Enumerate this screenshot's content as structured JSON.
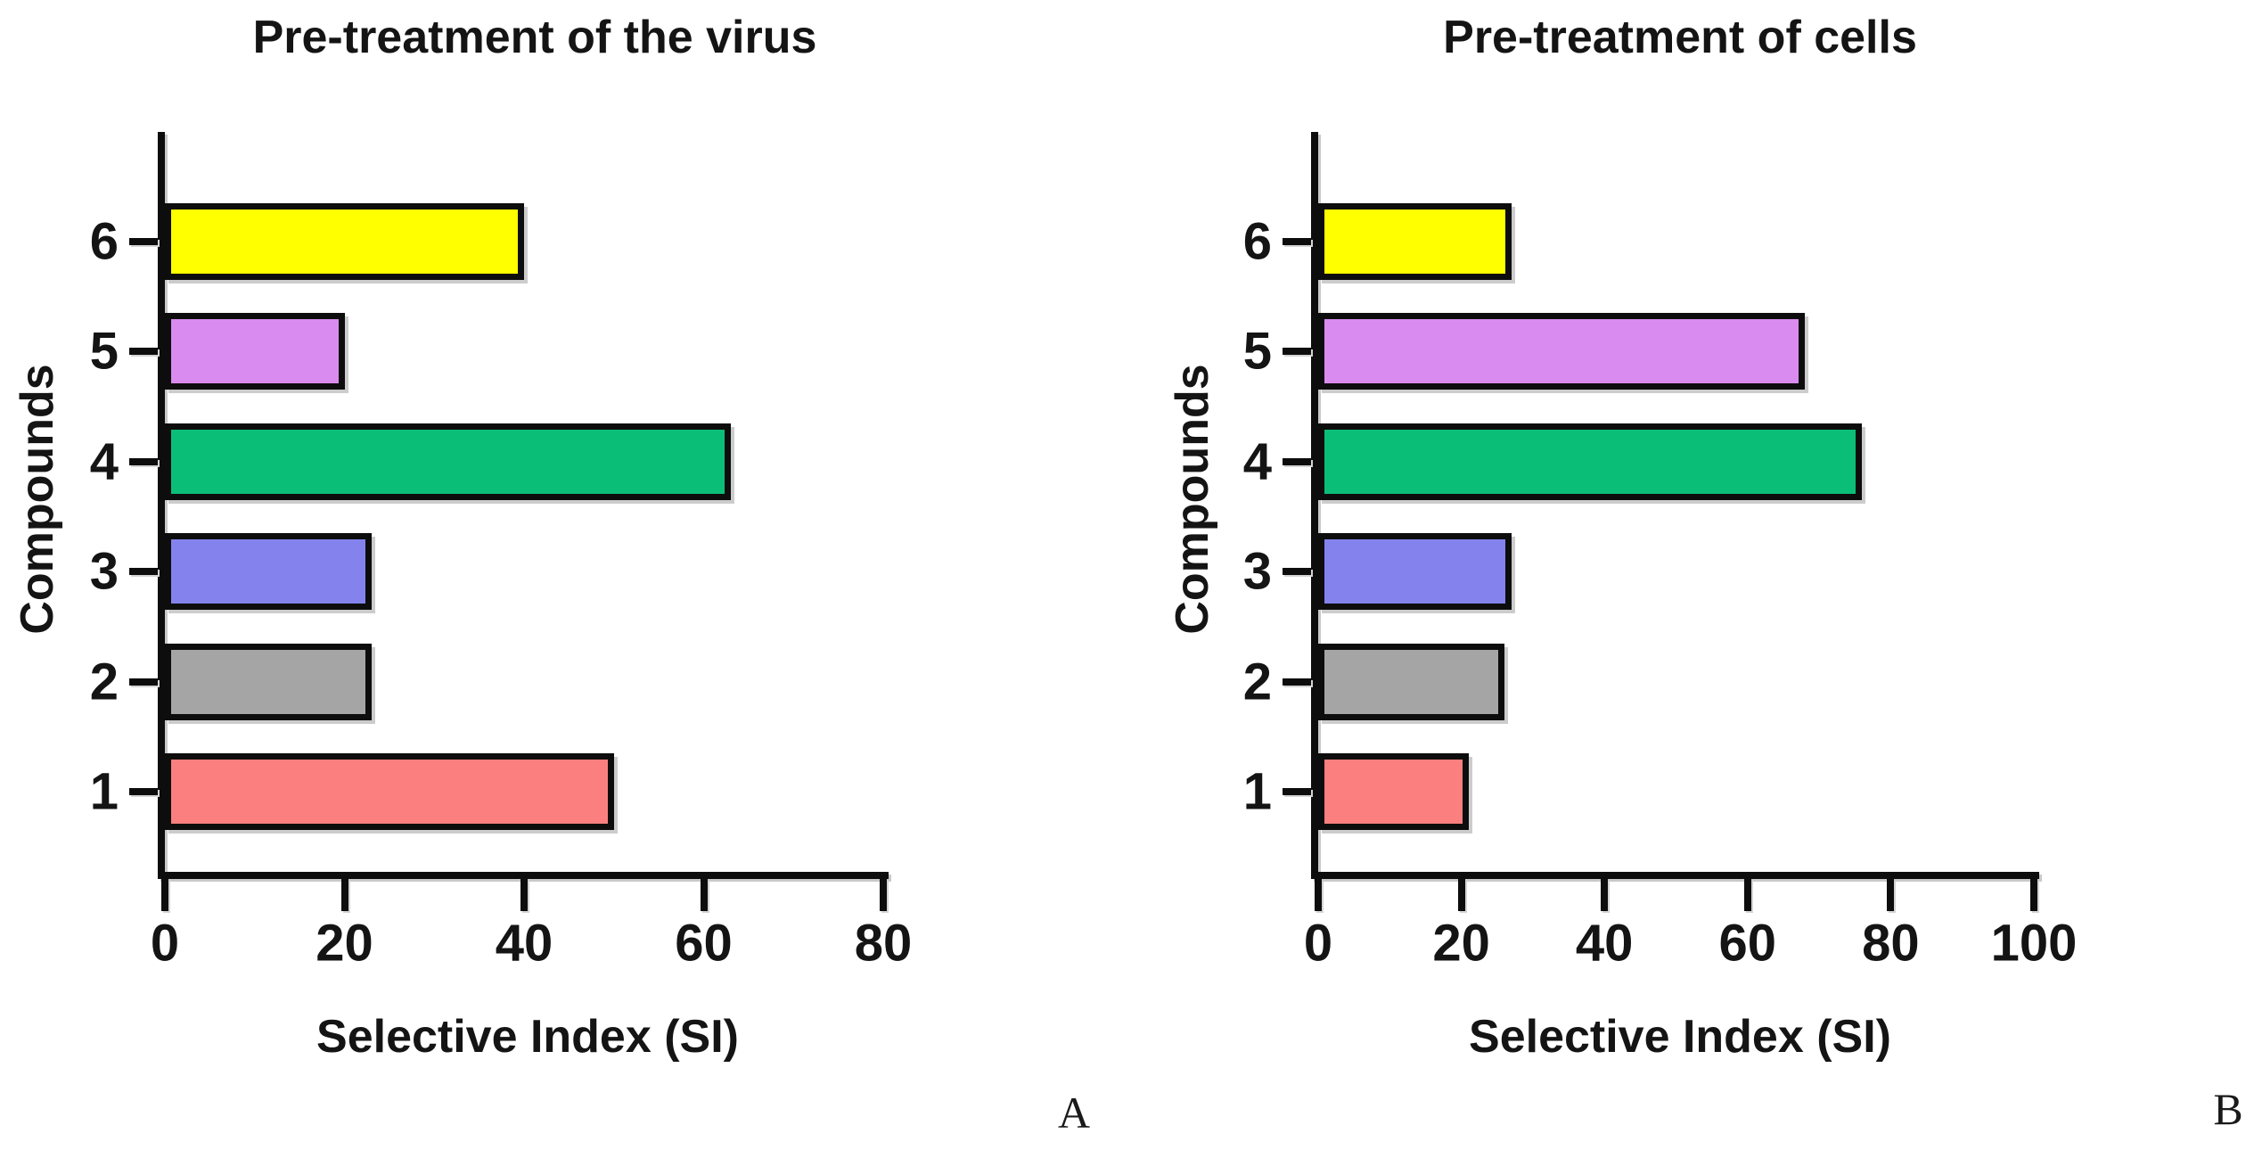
{
  "figure": {
    "background_color": "#ffffff",
    "bar_border_color": "#0d0d0d",
    "text_color": "#141414"
  },
  "chart_data": [
    {
      "type": "bar",
      "orientation": "horizontal",
      "title": "Pre-treatment of the virus",
      "xlabel": "Selective Index (SI)",
      "ylabel": "Compounds",
      "panel_label": "A",
      "categories": [
        "6",
        "5",
        "4",
        "3",
        "2",
        "1"
      ],
      "values": [
        40,
        20,
        63,
        23,
        23,
        50
      ],
      "colors": [
        "#FFFF00",
        "#DA8BEF",
        "#0BBE78",
        "#8483EE",
        "#A5A5A5",
        "#FB7F7F"
      ],
      "xlim": [
        0,
        80
      ],
      "xticks": [
        0,
        20,
        40,
        60,
        80
      ],
      "grid": false,
      "legend": "none"
    },
    {
      "type": "bar",
      "orientation": "horizontal",
      "title": "Pre-treatment of cells",
      "xlabel": "Selective Index (SI)",
      "ylabel": "Compounds",
      "panel_label": "B",
      "categories": [
        "6",
        "5",
        "4",
        "3",
        "2",
        "1"
      ],
      "values": [
        27,
        68,
        76,
        27,
        26,
        21
      ],
      "colors": [
        "#FFFF00",
        "#DA8BEF",
        "#0BBE78",
        "#8483EE",
        "#A5A5A5",
        "#FB7F7F"
      ],
      "xlim": [
        0,
        100
      ],
      "xticks": [
        0,
        20,
        40,
        60,
        80,
        100
      ],
      "grid": false,
      "legend": "none"
    }
  ]
}
